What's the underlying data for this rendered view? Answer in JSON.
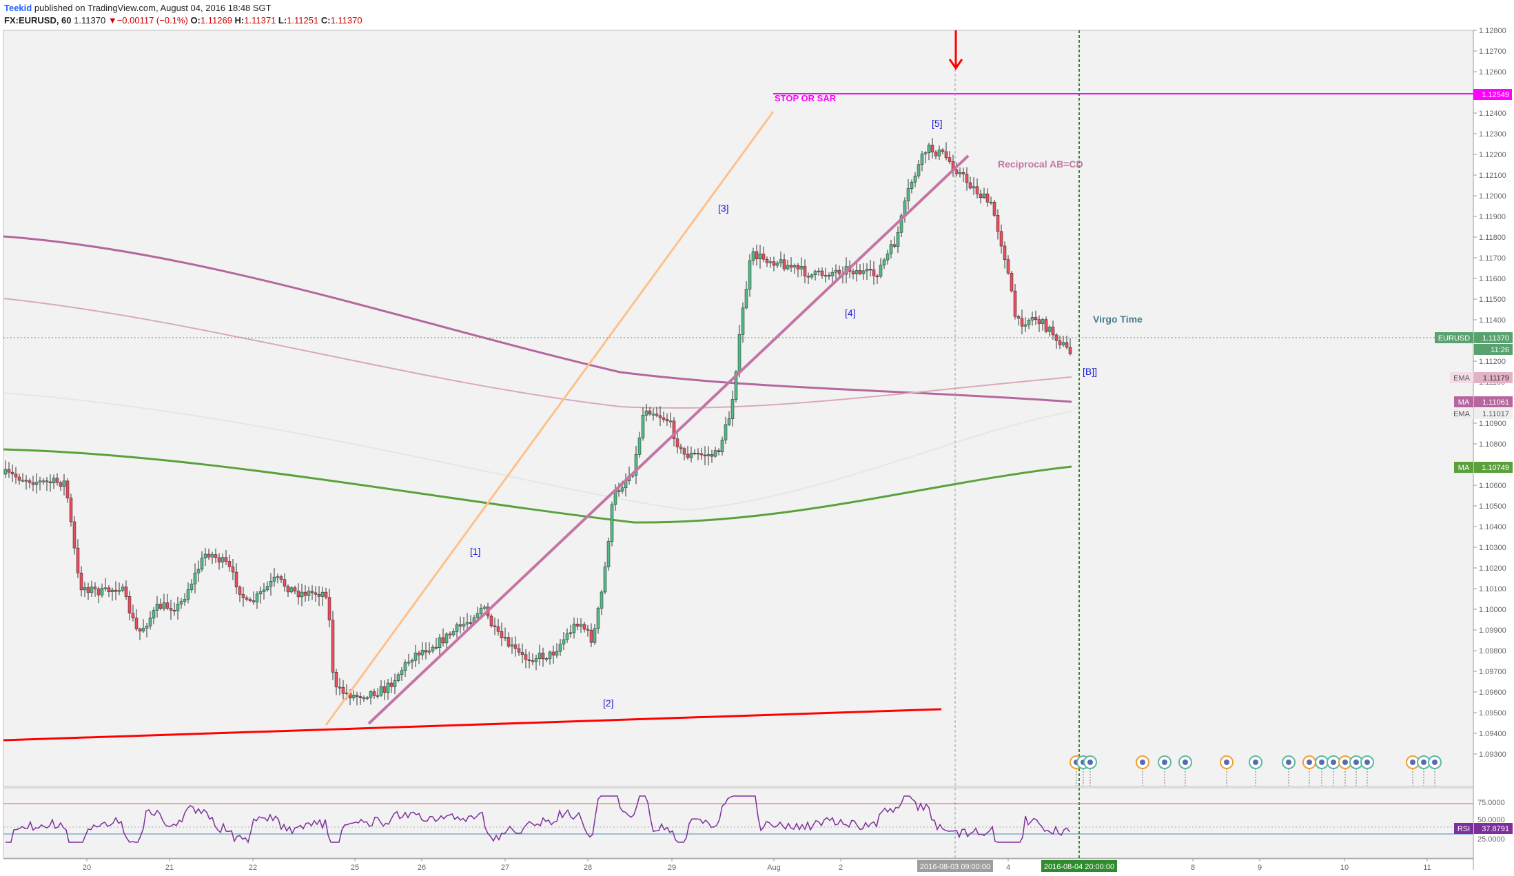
{
  "header": {
    "author": "Teekid",
    "published": "published on TradingView.com, August 04, 2016 18:48 SGT",
    "symbol": "FX:EURUSD, 60",
    "last": "1.11370",
    "change": "−0.00117 (−0.1%)",
    "o_label": "O:",
    "o": "1.11269",
    "h_label": "H:",
    "h": "1.11371",
    "l_label": "L:",
    "l": "1.11251",
    "c_label": "C:",
    "c": "1.11370"
  },
  "chart_data": {
    "type": "candlestick",
    "y_ticks": [
      "1.12800",
      "1.12700",
      "1.12600",
      "1.12500",
      "1.12400",
      "1.12300",
      "1.12200",
      "1.12100",
      "1.12000",
      "1.11900",
      "1.11800",
      "1.11700",
      "1.11600",
      "1.11500",
      "1.11400",
      "1.11300",
      "1.11200",
      "1.11100",
      "1.11000",
      "1.10900",
      "1.10800",
      "1.10700",
      "1.10600",
      "1.10500",
      "1.10400",
      "1.10300",
      "1.10200",
      "1.10100",
      "1.10000",
      "1.09900",
      "1.09800",
      "1.09700",
      "1.09600",
      "1.09500",
      "1.09400",
      "1.09300"
    ],
    "x_ticks": [
      "20",
      "21",
      "22",
      "25",
      "26",
      "27",
      "28",
      "29",
      "Aug",
      "2",
      "4",
      "8",
      "9",
      "10",
      "11"
    ],
    "annotations": {
      "stop": "STOP OR SAR",
      "reciprocal": "Reciprocal AB=CD",
      "virgo": "Virgo Time",
      "w1": "[1]",
      "w2": "[2]",
      "w3": "[3]",
      "w4": "[4]",
      "w5": "[5]",
      "wb": "[B]]"
    },
    "price_labels": {
      "stop_level": "1.12549",
      "eurusd_name": "EURUSD",
      "eurusd_val": "1.11370",
      "countdown": "11:26",
      "ema1_name": "EMA",
      "ema1_val": "1.11179",
      "ma1_name": "MA",
      "ma1_val": "1.11061",
      "ema2_name": "EMA",
      "ema2_val": "1.11017",
      "ma2_name": "MA",
      "ma2_val": "1.10749"
    },
    "time_labels": {
      "vline1": "2016-08-03 09:00:00",
      "vline2": "2016-08-04 20:00:00"
    },
    "rsi": {
      "name": "RSI",
      "value": "37.8791",
      "ticks": [
        "75.0000",
        "50.0000",
        "25.0000"
      ]
    },
    "colors": {
      "up": "#53b987",
      "down": "#eb4d5c",
      "magenta": "#ff00ff",
      "ma_purple": "#b5669e",
      "ma_green": "#5aa13c",
      "orange": "#ffc18a",
      "red_line": "#ff0000"
    }
  }
}
